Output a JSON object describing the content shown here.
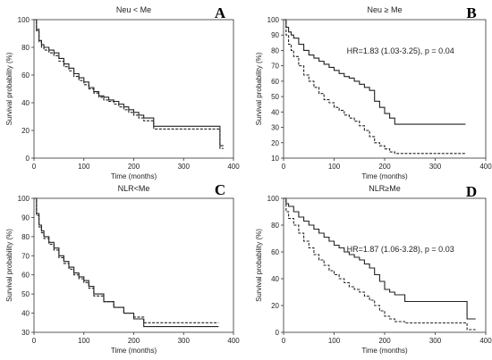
{
  "chart_data": [
    {
      "type": "line",
      "panel": "A",
      "title": "Neu < Me",
      "annotation": "",
      "xlabel": "Time (months)",
      "ylabel": "Survival probability (%)",
      "xlim": [
        0,
        400
      ],
      "ylim": [
        0,
        100
      ],
      "xticks": [
        0,
        100,
        200,
        300,
        400
      ],
      "yticks": [
        0,
        20,
        40,
        60,
        80,
        100
      ],
      "grid": false,
      "series": [
        {
          "style": "solid",
          "x": [
            0,
            5,
            10,
            15,
            20,
            30,
            40,
            50,
            60,
            70,
            80,
            90,
            100,
            110,
            120,
            130,
            140,
            150,
            160,
            170,
            180,
            190,
            200,
            210,
            220,
            240,
            370,
            373,
            380
          ],
          "y": [
            100,
            93,
            85,
            82,
            80,
            78,
            76,
            72,
            68,
            65,
            61,
            58,
            55,
            51,
            48,
            45,
            44,
            42,
            41,
            39,
            37,
            35,
            33,
            31,
            29,
            23,
            23,
            9,
            9
          ]
        },
        {
          "style": "dashed",
          "x": [
            0,
            5,
            10,
            15,
            20,
            30,
            40,
            50,
            60,
            70,
            80,
            90,
            100,
            110,
            120,
            130,
            140,
            150,
            160,
            170,
            180,
            190,
            200,
            210,
            220,
            240,
            370,
            373,
            380
          ],
          "y": [
            100,
            92,
            84,
            80,
            78,
            76,
            74,
            70,
            66,
            63,
            59,
            56,
            53,
            50,
            47,
            44,
            42,
            41,
            39,
            37,
            35,
            33,
            31,
            29,
            27,
            21,
            21,
            7,
            7
          ]
        }
      ]
    },
    {
      "type": "line",
      "panel": "B",
      "title": "Neu ≥ Me",
      "annotation": "HR=1.83 (1.03-3.25), p = 0.04",
      "xlabel": "Time (months)",
      "ylabel": "Survival probability (%)",
      "xlim": [
        0,
        400
      ],
      "ylim": [
        10,
        100
      ],
      "xticks": [
        0,
        100,
        200,
        300,
        400
      ],
      "yticks": [
        10,
        20,
        30,
        40,
        50,
        60,
        70,
        80,
        90,
        100
      ],
      "grid": false,
      "series": [
        {
          "style": "solid",
          "x": [
            0,
            5,
            10,
            15,
            20,
            30,
            40,
            50,
            60,
            70,
            80,
            90,
            100,
            110,
            120,
            130,
            140,
            150,
            160,
            170,
            180,
            190,
            200,
            210,
            220,
            240,
            360
          ],
          "y": [
            100,
            95,
            92,
            90,
            88,
            84,
            80,
            77,
            75,
            73,
            71,
            69,
            67,
            65,
            63,
            62,
            60,
            58,
            56,
            54,
            47,
            43,
            39,
            36,
            32,
            32,
            32
          ]
        },
        {
          "style": "dashed",
          "x": [
            0,
            5,
            10,
            15,
            20,
            30,
            40,
            50,
            60,
            70,
            80,
            90,
            100,
            110,
            120,
            130,
            140,
            150,
            160,
            170,
            180,
            190,
            200,
            210,
            220,
            240,
            360
          ],
          "y": [
            100,
            90,
            84,
            80,
            76,
            70,
            64,
            60,
            56,
            52,
            48,
            46,
            43,
            41,
            38,
            36,
            34,
            31,
            28,
            24,
            20,
            18,
            16,
            14,
            13,
            13,
            13
          ]
        }
      ]
    },
    {
      "type": "line",
      "panel": "C",
      "title": "NLR<Me",
      "annotation": "",
      "xlabel": "Time (months)",
      "ylabel": "Survival probability (%)",
      "xlim": [
        0,
        400
      ],
      "ylim": [
        30,
        100
      ],
      "xticks": [
        0,
        100,
        200,
        300,
        400
      ],
      "yticks": [
        30,
        40,
        50,
        60,
        70,
        80,
        90,
        100
      ],
      "grid": false,
      "series": [
        {
          "style": "solid",
          "x": [
            0,
            5,
            10,
            15,
            20,
            30,
            40,
            50,
            60,
            70,
            80,
            90,
            100,
            110,
            120,
            140,
            160,
            180,
            200,
            220,
            240,
            370
          ],
          "y": [
            100,
            92,
            86,
            83,
            80,
            77,
            74,
            70,
            67,
            64,
            61,
            59,
            57,
            54,
            50,
            46,
            43,
            40,
            37,
            33,
            33,
            33
          ]
        },
        {
          "style": "dashed",
          "x": [
            0,
            5,
            10,
            15,
            20,
            30,
            40,
            50,
            60,
            70,
            80,
            90,
            100,
            110,
            120,
            140,
            160,
            180,
            200,
            220,
            240,
            370
          ],
          "y": [
            100,
            91,
            85,
            82,
            79,
            76,
            73,
            69,
            66,
            63,
            60,
            58,
            56,
            53,
            49,
            46,
            43,
            40,
            38,
            35,
            35,
            35
          ]
        }
      ]
    },
    {
      "type": "line",
      "panel": "D",
      "title": "NLR≥Me",
      "annotation": "HR=1.87 (1.06-3.28), p = 0.03",
      "xlabel": "Time (months)",
      "ylabel": "Survival probability (%)",
      "xlim": [
        0,
        400
      ],
      "ylim": [
        0,
        100
      ],
      "xticks": [
        0,
        100,
        200,
        300,
        400
      ],
      "yticks": [
        0,
        20,
        40,
        60,
        80,
        100
      ],
      "grid": false,
      "series": [
        {
          "style": "solid",
          "x": [
            0,
            5,
            10,
            20,
            30,
            40,
            50,
            60,
            70,
            80,
            90,
            100,
            110,
            120,
            130,
            140,
            150,
            160,
            170,
            180,
            190,
            200,
            210,
            220,
            240,
            360,
            363,
            380
          ],
          "y": [
            100,
            96,
            94,
            90,
            86,
            83,
            80,
            77,
            74,
            71,
            68,
            65,
            63,
            60,
            58,
            56,
            54,
            51,
            48,
            43,
            38,
            32,
            30,
            28,
            23,
            23,
            10,
            10
          ]
        },
        {
          "style": "dashed",
          "x": [
            0,
            5,
            10,
            20,
            30,
            40,
            50,
            60,
            70,
            80,
            90,
            100,
            110,
            120,
            130,
            140,
            150,
            160,
            170,
            180,
            190,
            200,
            210,
            220,
            240,
            360,
            363,
            380
          ],
          "y": [
            100,
            90,
            85,
            80,
            74,
            68,
            63,
            58,
            54,
            50,
            46,
            43,
            40,
            37,
            34,
            32,
            30,
            27,
            24,
            20,
            16,
            12,
            10,
            8,
            7,
            7,
            2,
            2
          ]
        }
      ]
    }
  ]
}
